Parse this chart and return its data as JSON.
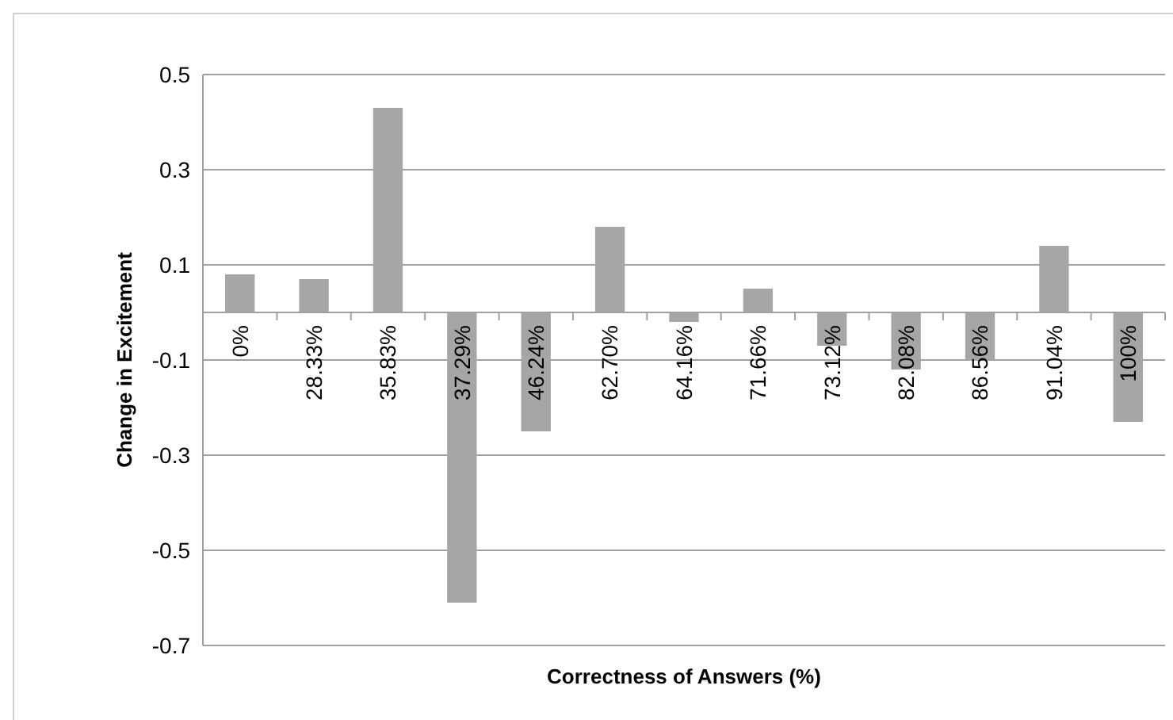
{
  "chart_data": {
    "type": "bar",
    "xlabel": "Correctness of Answers (%)",
    "ylabel": "Change in Excitement",
    "categories": [
      "0%",
      "28.33%",
      "35.83%",
      "37.29%",
      "46.24%",
      "62.70%",
      "64.16%",
      "71.66%",
      "73.12%",
      "82.08%",
      "86.56%",
      "91.04%",
      "100%"
    ],
    "values": [
      0.08,
      0.07,
      0.43,
      -0.61,
      -0.25,
      0.18,
      -0.02,
      0.05,
      -0.07,
      -0.12,
      -0.1,
      0.14,
      -0.23
    ],
    "color": "#a6a6a6",
    "ylim": [
      -0.7,
      0.5
    ],
    "yticks": [
      -0.7,
      -0.5,
      -0.3,
      -0.1,
      0.1,
      0.3,
      0.5
    ],
    "grid": "y"
  }
}
